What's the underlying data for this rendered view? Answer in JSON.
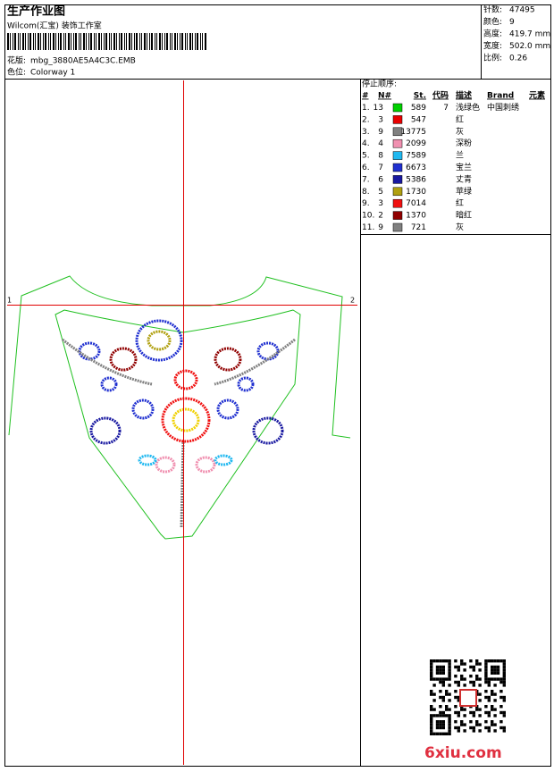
{
  "header": {
    "title": "生产作业图",
    "studio": "Wilcom(汇宝) 装饰工作室",
    "design_label": "花版:",
    "design_file": "mbg_3880AE5A4C3C.EMB",
    "colorway_label": "色位:",
    "colorway": "Colorway 1"
  },
  "stats": [
    {
      "label": "针数:",
      "value": "47495"
    },
    {
      "label": "颜色:",
      "value": "9"
    },
    {
      "label": "高度:",
      "value": "419.7 mm"
    },
    {
      "label": "宽度:",
      "value": "502.0 mm"
    },
    {
      "label": "比例:",
      "value": "0.26"
    }
  ],
  "table": {
    "title": "停止顺序:",
    "columns": [
      "#",
      "N#",
      "St.",
      "代码",
      "描述",
      "Brand",
      "元素"
    ],
    "rows": [
      {
        "index": "1.",
        "needle": 13,
        "color": "#00d000",
        "stitches": 589,
        "code": 7,
        "description": "浅绿色",
        "brand": "中国刺绣"
      },
      {
        "index": "2.",
        "needle": 3,
        "color": "#e80000",
        "stitches": 547,
        "description": "红"
      },
      {
        "index": "3.",
        "needle": 9,
        "color": "#808080",
        "stitches": 13775,
        "description": "灰"
      },
      {
        "index": "4.",
        "needle": 4,
        "color": "#f090b0",
        "stitches": 2099,
        "description": "深粉"
      },
      {
        "index": "5.",
        "needle": 8,
        "color": "#20b8f0",
        "stitches": 7589,
        "description": "兰"
      },
      {
        "index": "6.",
        "needle": 7,
        "color": "#2030d0",
        "stitches": 6673,
        "description": "宝兰"
      },
      {
        "index": "7.",
        "needle": 6,
        "color": "#1818a0",
        "stitches": 5386,
        "description": "丈青"
      },
      {
        "index": "8.",
        "needle": 5,
        "color": "#b0a010",
        "stitches": 1730,
        "description": "苹绿"
      },
      {
        "index": "9.",
        "needle": 3,
        "color": "#f01010",
        "stitches": 7014,
        "description": "红"
      },
      {
        "index": "10.",
        "needle": 2,
        "color": "#900000",
        "stitches": 1370,
        "description": "暗红"
      },
      {
        "index": "11.",
        "needle": 9,
        "color": "#808080",
        "stitches": 721,
        "description": "灰"
      }
    ]
  },
  "crosshair": {
    "left": "1",
    "right": "2"
  },
  "watermark": "6xiu.com"
}
